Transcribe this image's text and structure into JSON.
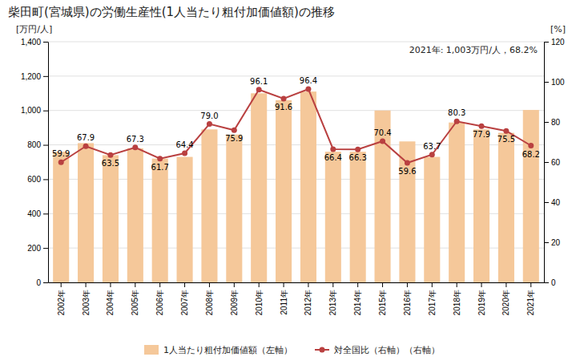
{
  "chart_data": {
    "type": "bar",
    "title": "柴田町(宮城県)の労働生産性(1人当たり粗付加価値額)の推移",
    "categories": [
      "2002年",
      "2003年",
      "2004年",
      "2005年",
      "2006年",
      "2007年",
      "2008年",
      "2009年",
      "2010年",
      "2011年",
      "2012年",
      "2013年",
      "2014年",
      "2015年",
      "2016年",
      "2017年",
      "2018年",
      "2019年",
      "2020年",
      "2021年"
    ],
    "series": [
      {
        "name": "1人当たり粗付加価値額（左軸）",
        "type": "bar",
        "color": "#F5C89A",
        "values": [
          760,
          810,
          740,
          780,
          720,
          730,
          890,
          860,
          1100,
          1060,
          1110,
          760,
          760,
          1000,
          820,
          730,
          930,
          890,
          870,
          1003
        ]
      },
      {
        "name": "対全国比（右軸）（右軸）",
        "type": "line",
        "color": "#B94040",
        "marker": "circle",
        "axis": "y2",
        "data_labels": true,
        "values": [
          59.9,
          67.9,
          63.5,
          67.3,
          61.7,
          64.4,
          79.0,
          75.9,
          96.1,
          91.6,
          96.4,
          66.4,
          66.3,
          70.4,
          59.6,
          63.7,
          80.3,
          77.9,
          75.5,
          68.2
        ],
        "value_labels": [
          "59.9",
          "67.9",
          "63.5",
          "67.3",
          "61.7",
          "64.4",
          "79.0",
          "75.9",
          "96.1",
          "91.6",
          "96.4",
          "66.4",
          "66.3",
          "70.4",
          "59.6",
          "63.7",
          "80.3",
          "77.9",
          "75.5",
          "68.2"
        ]
      }
    ],
    "ylabel": "[万円/人]",
    "y2label": "[%]",
    "ylim": [
      0,
      1400
    ],
    "yticks": [
      0,
      200,
      400,
      600,
      800,
      {
        "value": 1000,
        "label": "1,000"
      },
      {
        "value": 1200,
        "label": "1,200"
      },
      {
        "value": 1400,
        "label": "1,400"
      }
    ],
    "y2lim": [
      0,
      120
    ],
    "y2ticks": [
      0,
      20,
      40,
      60,
      80,
      100,
      120
    ],
    "annotation": "2021年: 1,003万円/人，68.2%",
    "grid": true,
    "legend": "bottom"
  }
}
